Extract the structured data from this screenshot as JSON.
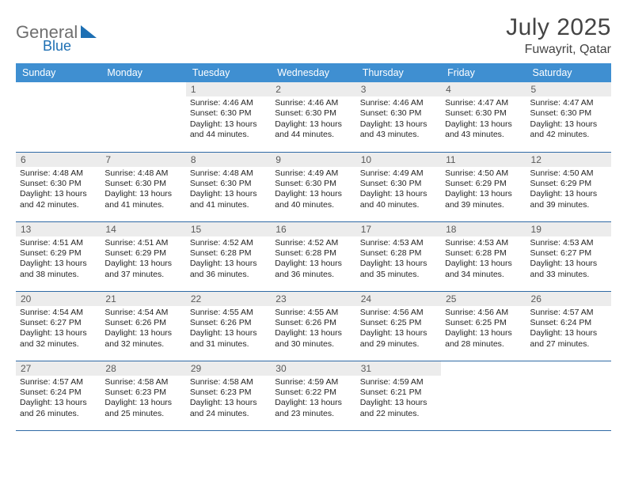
{
  "brand": {
    "name1": "General",
    "name2": "Blue"
  },
  "title": {
    "month_year": "July 2025",
    "location": "Fuwayrit, Qatar"
  },
  "colors": {
    "header_bg": "#3f8fd1",
    "header_text": "#ffffff",
    "daynum_bg": "#ececec",
    "daynum_text": "#595959",
    "cell_border": "#2f6aa5",
    "body_text": "#252525",
    "logo_gray": "#6f6f6f",
    "logo_blue": "#1d6fb3"
  },
  "weekdays": [
    "Sunday",
    "Monday",
    "Tuesday",
    "Wednesday",
    "Thursday",
    "Friday",
    "Saturday"
  ],
  "weeks": [
    [
      {
        "day": "",
        "sunrise": "",
        "sunset": "",
        "daylight": ""
      },
      {
        "day": "",
        "sunrise": "",
        "sunset": "",
        "daylight": ""
      },
      {
        "day": "1",
        "sunrise": "Sunrise: 4:46 AM",
        "sunset": "Sunset: 6:30 PM",
        "daylight": "Daylight: 13 hours and 44 minutes."
      },
      {
        "day": "2",
        "sunrise": "Sunrise: 4:46 AM",
        "sunset": "Sunset: 6:30 PM",
        "daylight": "Daylight: 13 hours and 44 minutes."
      },
      {
        "day": "3",
        "sunrise": "Sunrise: 4:46 AM",
        "sunset": "Sunset: 6:30 PM",
        "daylight": "Daylight: 13 hours and 43 minutes."
      },
      {
        "day": "4",
        "sunrise": "Sunrise: 4:47 AM",
        "sunset": "Sunset: 6:30 PM",
        "daylight": "Daylight: 13 hours and 43 minutes."
      },
      {
        "day": "5",
        "sunrise": "Sunrise: 4:47 AM",
        "sunset": "Sunset: 6:30 PM",
        "daylight": "Daylight: 13 hours and 42 minutes."
      }
    ],
    [
      {
        "day": "6",
        "sunrise": "Sunrise: 4:48 AM",
        "sunset": "Sunset: 6:30 PM",
        "daylight": "Daylight: 13 hours and 42 minutes."
      },
      {
        "day": "7",
        "sunrise": "Sunrise: 4:48 AM",
        "sunset": "Sunset: 6:30 PM",
        "daylight": "Daylight: 13 hours and 41 minutes."
      },
      {
        "day": "8",
        "sunrise": "Sunrise: 4:48 AM",
        "sunset": "Sunset: 6:30 PM",
        "daylight": "Daylight: 13 hours and 41 minutes."
      },
      {
        "day": "9",
        "sunrise": "Sunrise: 4:49 AM",
        "sunset": "Sunset: 6:30 PM",
        "daylight": "Daylight: 13 hours and 40 minutes."
      },
      {
        "day": "10",
        "sunrise": "Sunrise: 4:49 AM",
        "sunset": "Sunset: 6:30 PM",
        "daylight": "Daylight: 13 hours and 40 minutes."
      },
      {
        "day": "11",
        "sunrise": "Sunrise: 4:50 AM",
        "sunset": "Sunset: 6:29 PM",
        "daylight": "Daylight: 13 hours and 39 minutes."
      },
      {
        "day": "12",
        "sunrise": "Sunrise: 4:50 AM",
        "sunset": "Sunset: 6:29 PM",
        "daylight": "Daylight: 13 hours and 39 minutes."
      }
    ],
    [
      {
        "day": "13",
        "sunrise": "Sunrise: 4:51 AM",
        "sunset": "Sunset: 6:29 PM",
        "daylight": "Daylight: 13 hours and 38 minutes."
      },
      {
        "day": "14",
        "sunrise": "Sunrise: 4:51 AM",
        "sunset": "Sunset: 6:29 PM",
        "daylight": "Daylight: 13 hours and 37 minutes."
      },
      {
        "day": "15",
        "sunrise": "Sunrise: 4:52 AM",
        "sunset": "Sunset: 6:28 PM",
        "daylight": "Daylight: 13 hours and 36 minutes."
      },
      {
        "day": "16",
        "sunrise": "Sunrise: 4:52 AM",
        "sunset": "Sunset: 6:28 PM",
        "daylight": "Daylight: 13 hours and 36 minutes."
      },
      {
        "day": "17",
        "sunrise": "Sunrise: 4:53 AM",
        "sunset": "Sunset: 6:28 PM",
        "daylight": "Daylight: 13 hours and 35 minutes."
      },
      {
        "day": "18",
        "sunrise": "Sunrise: 4:53 AM",
        "sunset": "Sunset: 6:28 PM",
        "daylight": "Daylight: 13 hours and 34 minutes."
      },
      {
        "day": "19",
        "sunrise": "Sunrise: 4:53 AM",
        "sunset": "Sunset: 6:27 PM",
        "daylight": "Daylight: 13 hours and 33 minutes."
      }
    ],
    [
      {
        "day": "20",
        "sunrise": "Sunrise: 4:54 AM",
        "sunset": "Sunset: 6:27 PM",
        "daylight": "Daylight: 13 hours and 32 minutes."
      },
      {
        "day": "21",
        "sunrise": "Sunrise: 4:54 AM",
        "sunset": "Sunset: 6:26 PM",
        "daylight": "Daylight: 13 hours and 32 minutes."
      },
      {
        "day": "22",
        "sunrise": "Sunrise: 4:55 AM",
        "sunset": "Sunset: 6:26 PM",
        "daylight": "Daylight: 13 hours and 31 minutes."
      },
      {
        "day": "23",
        "sunrise": "Sunrise: 4:55 AM",
        "sunset": "Sunset: 6:26 PM",
        "daylight": "Daylight: 13 hours and 30 minutes."
      },
      {
        "day": "24",
        "sunrise": "Sunrise: 4:56 AM",
        "sunset": "Sunset: 6:25 PM",
        "daylight": "Daylight: 13 hours and 29 minutes."
      },
      {
        "day": "25",
        "sunrise": "Sunrise: 4:56 AM",
        "sunset": "Sunset: 6:25 PM",
        "daylight": "Daylight: 13 hours and 28 minutes."
      },
      {
        "day": "26",
        "sunrise": "Sunrise: 4:57 AM",
        "sunset": "Sunset: 6:24 PM",
        "daylight": "Daylight: 13 hours and 27 minutes."
      }
    ],
    [
      {
        "day": "27",
        "sunrise": "Sunrise: 4:57 AM",
        "sunset": "Sunset: 6:24 PM",
        "daylight": "Daylight: 13 hours and 26 minutes."
      },
      {
        "day": "28",
        "sunrise": "Sunrise: 4:58 AM",
        "sunset": "Sunset: 6:23 PM",
        "daylight": "Daylight: 13 hours and 25 minutes."
      },
      {
        "day": "29",
        "sunrise": "Sunrise: 4:58 AM",
        "sunset": "Sunset: 6:23 PM",
        "daylight": "Daylight: 13 hours and 24 minutes."
      },
      {
        "day": "30",
        "sunrise": "Sunrise: 4:59 AM",
        "sunset": "Sunset: 6:22 PM",
        "daylight": "Daylight: 13 hours and 23 minutes."
      },
      {
        "day": "31",
        "sunrise": "Sunrise: 4:59 AM",
        "sunset": "Sunset: 6:21 PM",
        "daylight": "Daylight: 13 hours and 22 minutes."
      },
      {
        "day": "",
        "sunrise": "",
        "sunset": "",
        "daylight": ""
      },
      {
        "day": "",
        "sunrise": "",
        "sunset": "",
        "daylight": ""
      }
    ]
  ]
}
